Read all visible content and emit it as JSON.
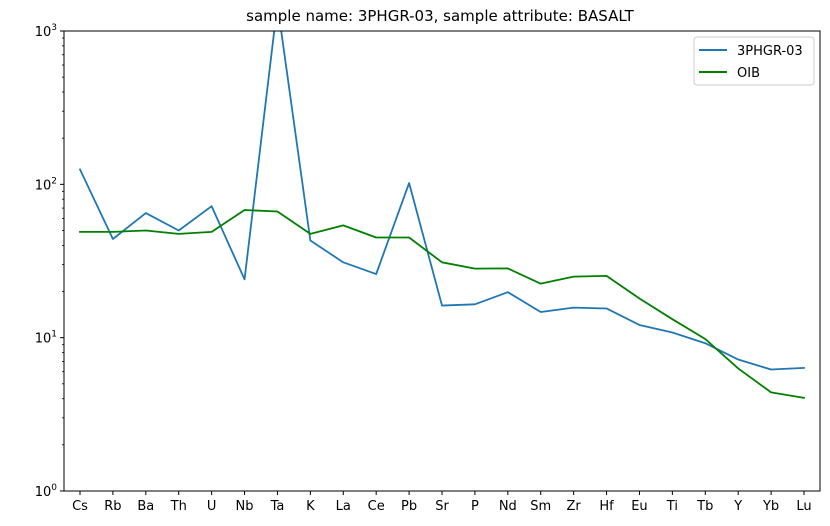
{
  "chart_data": {
    "type": "line",
    "title": "sample name: 3PHGR-03, sample attribute: BASALT",
    "xlabel": "",
    "ylabel": "",
    "yscale": "log",
    "ylim": [
      1,
      1000
    ],
    "yticks": [
      {
        "value": 1,
        "base": "10",
        "exp": "0"
      },
      {
        "value": 10,
        "base": "10",
        "exp": "1"
      },
      {
        "value": 100,
        "base": "10",
        "exp": "2"
      },
      {
        "value": 1000,
        "base": "10",
        "exp": "3"
      }
    ],
    "categories": [
      "Cs",
      "Rb",
      "Ba",
      "Th",
      "U",
      "Nb",
      "Ta",
      "K",
      "La",
      "Ce",
      "Pb",
      "Sr",
      "P",
      "Nd",
      "Sm",
      "Zr",
      "Hf",
      "Eu",
      "Ti",
      "Tb",
      "Y",
      "Yb",
      "Lu"
    ],
    "grid": false,
    "legend_position": "top-right",
    "series": [
      {
        "name": "3PHGR-03",
        "color": "#1f77b4",
        "values": [
          125,
          44,
          65,
          50,
          72,
          24,
          1500,
          43,
          31,
          26,
          102,
          16.2,
          16.5,
          19.8,
          14.7,
          15.7,
          15.5,
          12.1,
          10.8,
          9.2,
          7.2,
          6.2,
          6.35
        ]
      },
      {
        "name": "OIB",
        "color": "#008000",
        "values": [
          49,
          49,
          50,
          47.5,
          49,
          68,
          66.5,
          47.5,
          54,
          45,
          45,
          31,
          28.2,
          28.3,
          22.5,
          25,
          25.3,
          18,
          13.2,
          9.8,
          6.3,
          4.4,
          4.05
        ]
      }
    ]
  }
}
